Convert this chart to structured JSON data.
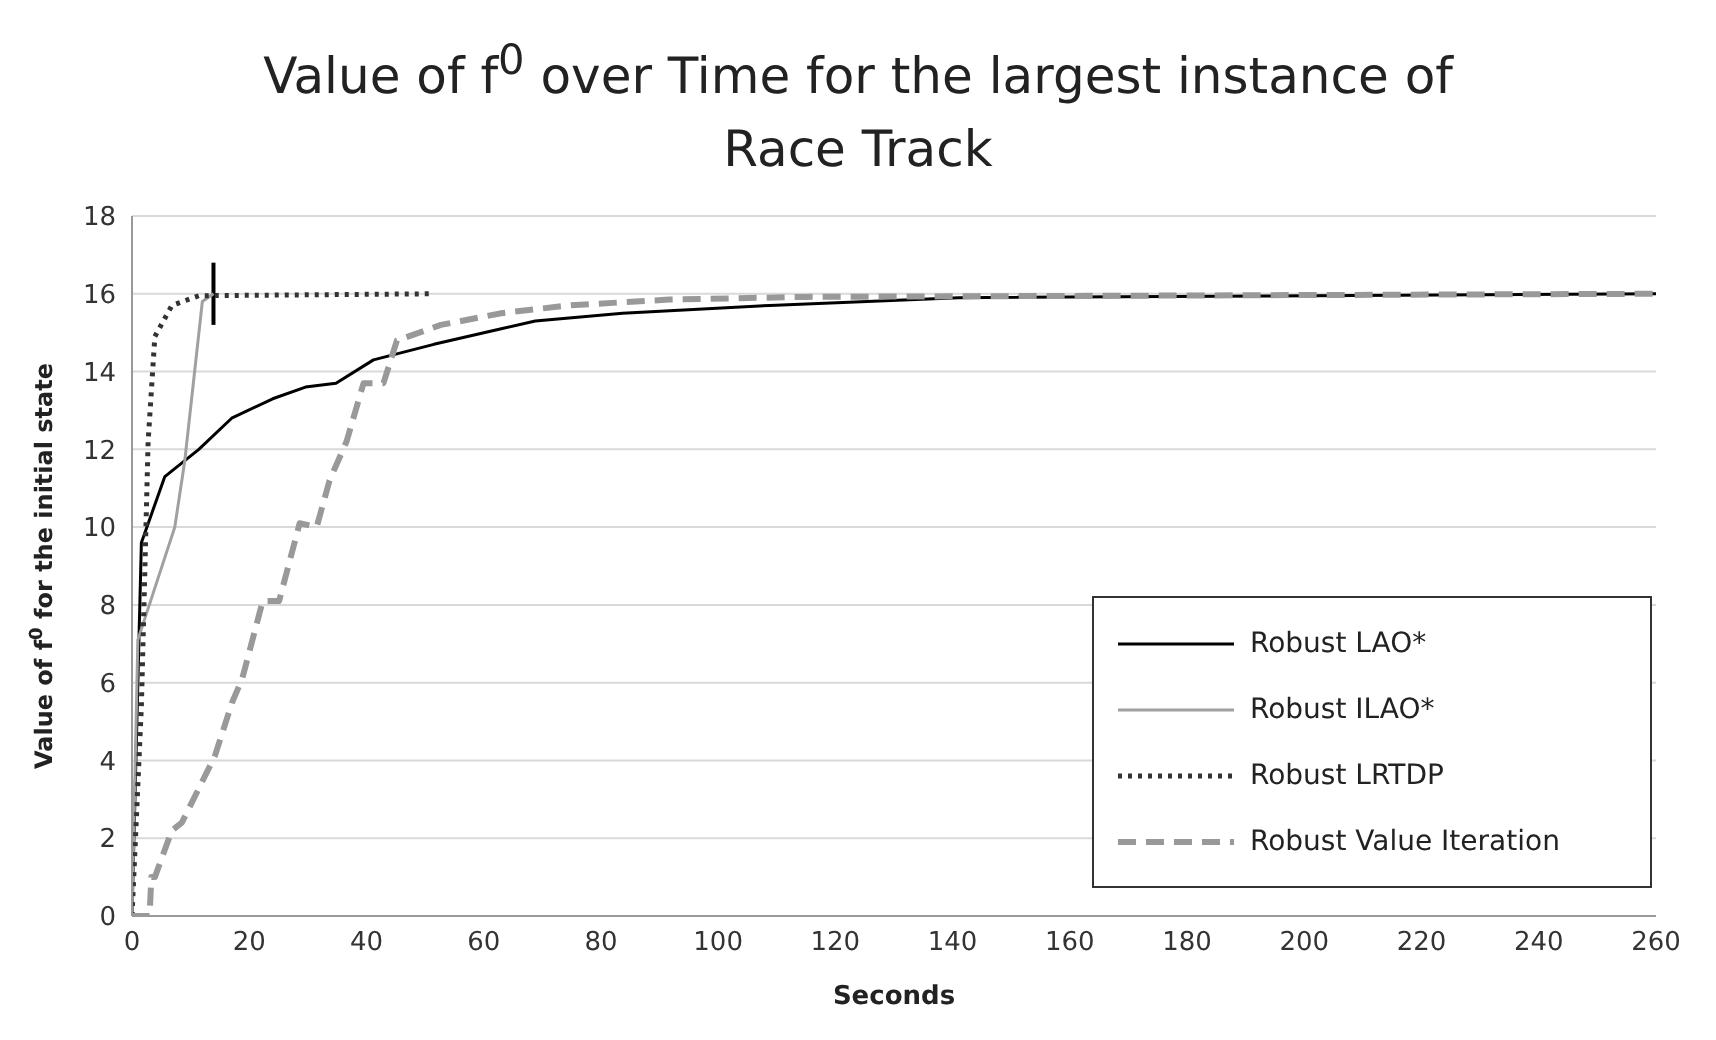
{
  "chart_data": {
    "type": "line",
    "title": "Value of f$^{0}$ over Time for the largest instance of Race Track",
    "xlabel": "Seconds",
    "ylabel": "Value of f$^{0}$ for the initial state",
    "xlim": [
      0,
      260
    ],
    "xticks": [
      0,
      20,
      40,
      60,
      80,
      100,
      120,
      140,
      160,
      180,
      200,
      220,
      240,
      260
    ],
    "ylim": [
      0,
      18
    ],
    "yticks": [
      0,
      2,
      4,
      6,
      8,
      10,
      12,
      14,
      16,
      18
    ],
    "grid": "y",
    "legend": "bottom right",
    "series": [
      {
        "name": "Robust LAO*",
        "color": "#000000",
        "line_style": "solid",
        "x": [
          0,
          1.6,
          5.6,
          11.4,
          17,
          24,
          29.6,
          34.8,
          41.2,
          51.5,
          63,
          68.8,
          83.7,
          108.8,
          141,
          260
        ],
        "values": [
          0,
          9.6,
          11.3,
          12,
          12.8,
          13.3,
          13.6,
          13.7,
          14.3,
          14.7,
          15.1,
          15.3,
          15.5,
          15.7,
          15.9,
          16
        ]
      },
      {
        "name": "Robust ILAO*",
        "color": "#a0a0a0",
        "line_style": "solid",
        "x": [
          0,
          1,
          7.3,
          9,
          12,
          13.9
        ],
        "values": [
          0,
          7.1,
          10,
          11.7,
          15.8,
          16
        ],
        "errors": [
          null,
          null,
          null,
          null,
          null,
          0.8
        ]
      },
      {
        "name": "Robust LRTDP",
        "color": "#333333",
        "line_style": "dotted",
        "x": [
          0,
          1.6,
          2.75,
          3.9,
          6.8,
          11.4,
          51
        ],
        "values": [
          0,
          5.4,
          12.2,
          14.9,
          15.7,
          15.95,
          16
        ]
      },
      {
        "name": "Robust Value Iteration",
        "color": "#999999",
        "line_style": "dashed",
        "x": [
          0,
          3,
          3.3,
          3.9,
          6.8,
          8.5,
          14.1,
          17.1,
          18.8,
          22.3,
          25.1,
          28.6,
          31.5,
          33.7,
          36.6,
          39.5,
          42.9,
          45.2,
          52.7,
          63,
          74.4,
          91.6,
          114.7,
          260
        ],
        "values": [
          0,
          0,
          1,
          1,
          2.2,
          2.4,
          4.1,
          5.5,
          6.1,
          8.1,
          8.1,
          10.1,
          10,
          11.2,
          12.2,
          13.7,
          13.7,
          14.8,
          15.2,
          15.5,
          15.7,
          15.85,
          15.92,
          16
        ]
      }
    ]
  }
}
